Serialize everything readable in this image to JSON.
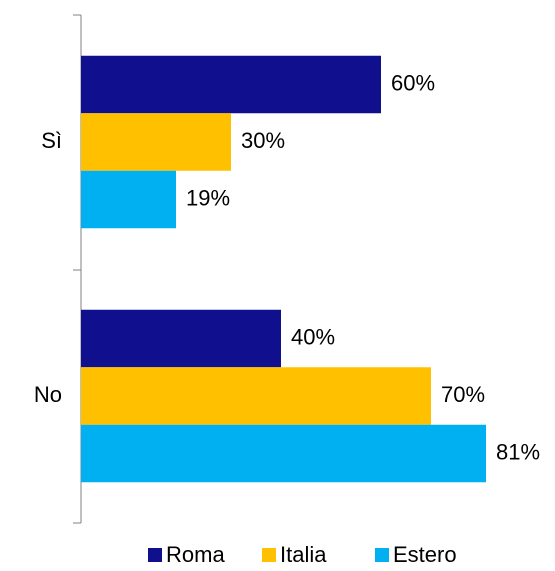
{
  "chart_data": {
    "type": "hbar",
    "categories": [
      "Sì",
      "No"
    ],
    "series": [
      {
        "name": "Roma",
        "color": "#10108f",
        "values": [
          60,
          40
        ],
        "value_labels": [
          "60%",
          "40%"
        ]
      },
      {
        "name": "Italia",
        "color": "#ffc000",
        "values": [
          30,
          70
        ],
        "value_labels": [
          "30%",
          "70%"
        ]
      },
      {
        "name": "Estero",
        "color": "#00b0f0",
        "values": [
          19,
          81
        ],
        "value_labels": [
          "19%",
          "81%"
        ]
      }
    ],
    "legend": "bottom"
  }
}
